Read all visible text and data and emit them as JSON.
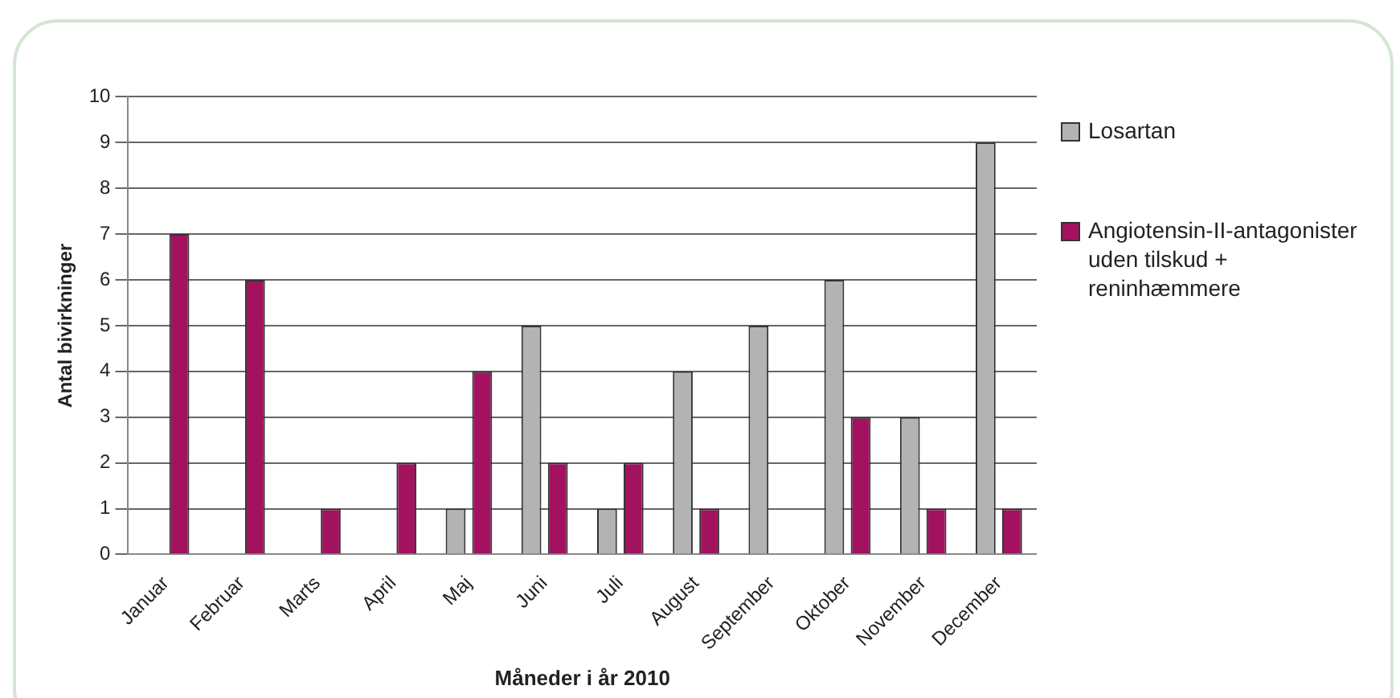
{
  "chart_data": {
    "type": "bar",
    "xlabel": "Måneder i år 2010",
    "ylabel": "Antal bivirkninger",
    "categories": [
      "Januar",
      "Februar",
      "Marts",
      "April",
      "Maj",
      "Juni",
      "Juli",
      "August",
      "September",
      "Oktober",
      "November",
      "December"
    ],
    "series": [
      {
        "name": "Losartan",
        "color": "#b3b3b3",
        "values": [
          0,
          0,
          0,
          0,
          1,
          5,
          1,
          4,
          5,
          6,
          3,
          9
        ]
      },
      {
        "name": "Angiotensin-II-antagonister uden tilskud + reninhæmmere",
        "color": "#a3125e",
        "values": [
          7,
          6,
          1,
          2,
          4,
          2,
          2,
          1,
          0,
          3,
          1,
          1
        ]
      }
    ],
    "ylim": [
      0,
      10
    ],
    "yticks": [
      0,
      1,
      2,
      3,
      4,
      5,
      6,
      7,
      8,
      9,
      10
    ],
    "grid": "y",
    "legend": "right"
  }
}
